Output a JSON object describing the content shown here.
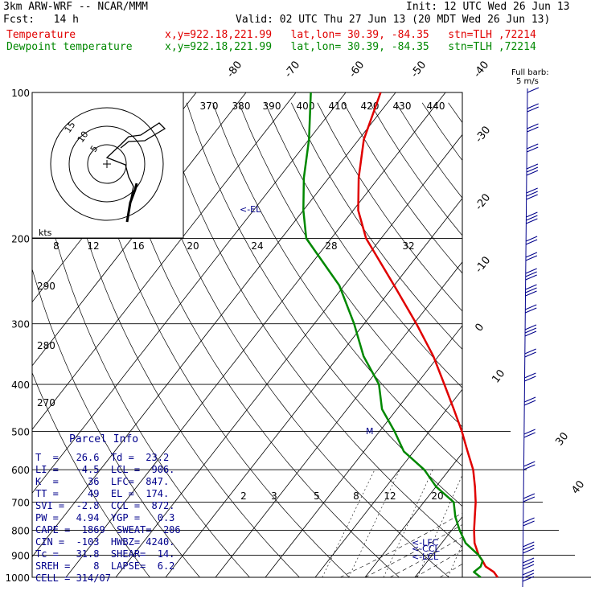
{
  "header": {
    "model": "3km ARW-WRF -- NCAR/MMM",
    "init": "Init: 12 UTC Wed 26 Jun 13",
    "fcst": "Fcst:   14 h",
    "valid": "Valid: 02 UTC Thu 27 Jun 13 (20 MDT Wed 26 Jun 13)",
    "temp_label": "Temperature",
    "temp_info": "x,y=922.18,221.99   lat,lon= 30.39, -84.35   stn=TLH ,72214",
    "dew_label": "Dewpoint temperature",
    "dew_info": "x,y=922.18,221.99   lat,lon= 30.39, -84.35   stn=TLH ,72214"
  },
  "parcel": {
    "title": "Parcel Info",
    "rows": [
      "T  =   26.6  Td =  23.2",
      "LI =   -4.5  LCL =  906.",
      "K  =     36  LFC=  847.",
      "TT =     49  EL =  174.",
      "SVI =  -2.8  CCL =  872.",
      "PW =   4.94  YGP =   0.3",
      "CAPE =  1869  SWEAT=  206",
      "CIN =  -103  HWBZ= 4240.",
      "Tc =   31.8  SHEAR=  14.",
      "SREH =    8  LAPSE=  6.2",
      "CELL = 314/07"
    ]
  },
  "chart_data": {
    "type": "line",
    "diagram": "skew-T log-P",
    "y_axis": {
      "scale": "log",
      "ylim": [
        1000,
        100
      ],
      "ticks": [
        100,
        200,
        300,
        400,
        500,
        600,
        700,
        800,
        900,
        1000
      ]
    },
    "isotherm_labels": [
      "-80",
      "-70",
      "-60",
      "-50",
      "-40",
      "-30",
      "-20",
      "-10",
      "0",
      "10",
      "30",
      "40"
    ],
    "theta_labels_top": [
      "370",
      "380",
      "390",
      "400",
      "410",
      "420",
      "430",
      "440"
    ],
    "theta_labels_side": [
      "290",
      "280",
      "270"
    ],
    "mixing_ratio_labels_upper": [
      "8",
      "12",
      "16",
      "20",
      "24",
      "28",
      "32"
    ],
    "mixing_ratio_labels_lower": [
      "2",
      "3",
      "5",
      "8",
      "12",
      "20"
    ],
    "series": [
      {
        "name": "Temperature",
        "color": "#e00000",
        "points": [
          [
            1000,
            26.6
          ],
          [
            975,
            25.0
          ],
          [
            950,
            22.5
          ],
          [
            925,
            21.0
          ],
          [
            900,
            19.3
          ],
          [
            850,
            16.6
          ],
          [
            800,
            14.5
          ],
          [
            750,
            12.5
          ],
          [
            700,
            10.4
          ],
          [
            650,
            7.8
          ],
          [
            600,
            4.8
          ],
          [
            550,
            0.8
          ],
          [
            500,
            -3.5
          ],
          [
            450,
            -8.6
          ],
          [
            400,
            -14.4
          ],
          [
            350,
            -21.0
          ],
          [
            300,
            -29.5
          ],
          [
            250,
            -40.0
          ],
          [
            200,
            -53.0
          ],
          [
            175,
            -59.0
          ],
          [
            150,
            -64.0
          ],
          [
            125,
            -69.0
          ],
          [
            100,
            -73.0
          ]
        ]
      },
      {
        "name": "Dewpoint temperature",
        "color": "#008800",
        "points": [
          [
            1000,
            23.2
          ],
          [
            975,
            21.0
          ],
          [
            950,
            21.5
          ],
          [
            925,
            21.0
          ],
          [
            900,
            19.3
          ],
          [
            850,
            14.8
          ],
          [
            800,
            11.6
          ],
          [
            750,
            8.6
          ],
          [
            700,
            6.0
          ],
          [
            650,
            0.0
          ],
          [
            600,
            -5.0
          ],
          [
            550,
            -12.0
          ],
          [
            500,
            -17.0
          ],
          [
            450,
            -23.0
          ],
          [
            400,
            -27.5
          ],
          [
            350,
            -35.0
          ],
          [
            300,
            -42.0
          ],
          [
            250,
            -51.0
          ],
          [
            200,
            -65.0
          ],
          [
            175,
            -70.0
          ],
          [
            150,
            -75.0
          ],
          [
            125,
            -80.0
          ],
          [
            100,
            -87.0
          ]
        ]
      }
    ],
    "levels": [
      {
        "label": "<-EL",
        "p": 174
      },
      {
        "label": "<-LFC",
        "p": 847
      },
      {
        "label": "<-CCL",
        "p": 872
      },
      {
        "label": "<-LCL",
        "p": 906
      }
    ],
    "hodograph": {
      "ring_labels": [
        "15",
        "10",
        "5"
      ],
      "units": "kts"
    },
    "wind_barb_legend": {
      "title": "Full barb:",
      "value": "5 m/s"
    }
  }
}
